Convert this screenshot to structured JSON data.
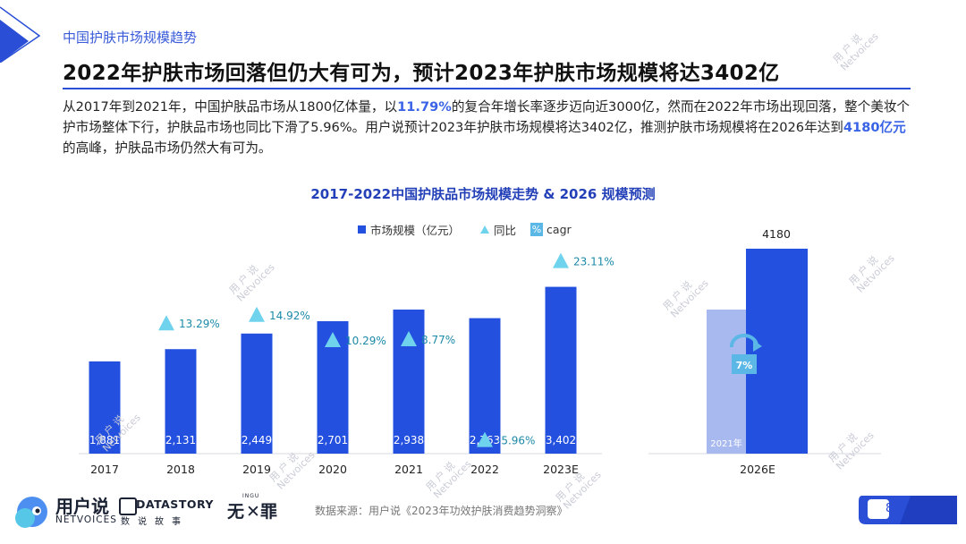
{
  "section_label": "中国护肤市场规模趋势",
  "headline": "2022年护肤市场回落但仍大有可为，预计2023年护肤市场规模将达3402亿",
  "paragraph": {
    "p1": "从2017年到2021年，中国护肤品市场从1800亿体量，以",
    "hl1": "11.79%",
    "p2": "的复合年增长率逐步迈向近3000亿，然而在2022年市场出现回落，整个美妆个护市场整体下行，护肤品市场也同比下滑了5.96%。用户说预计2023年护肤市场规模将达3402亿，推测护肤市场规模将在2026年达到",
    "hl2": "4180亿元",
    "p3": "的高峰，护肤品市场仍然大有可为。"
  },
  "colors": {
    "accent": "#2a4fd6",
    "bar": "#2450e0",
    "bar_light": "#a8b9f0",
    "marker": "#6fd3ee",
    "yoy_text": "#1c8aa8"
  },
  "chart_data": {
    "type": "bar",
    "title": "2017-2022中国护肤品市场规模走势 & 2026 规模预测",
    "legend": {
      "bar": "市场规模（亿元）",
      "yoy": "同比",
      "cagr_icon": "%",
      "cagr": "cagr"
    },
    "categories": [
      "2017",
      "2018",
      "2019",
      "2020",
      "2021",
      "2022",
      "2023E"
    ],
    "series": [
      {
        "name": "市场规模（亿元）",
        "values": [
          1881,
          2131,
          2449,
          2701,
          2938,
          2763,
          3402
        ]
      },
      {
        "name": "同比",
        "values": [
          null,
          13.29,
          14.92,
          10.29,
          8.77,
          -5.96,
          23.11
        ]
      }
    ],
    "value_labels": [
      "1,881",
      "2,131",
      "2,449",
      "2,701",
      "2,938",
      "2,763",
      "3,402"
    ],
    "yoy_labels": [
      "",
      "13.29%",
      "14.92%",
      "10.29%",
      "8.77%",
      "-5.96%",
      "23.11%"
    ],
    "forecast": {
      "category": "2026E",
      "base_label": "2021年",
      "base_value": 2938,
      "value": 4180,
      "value_label": "4180",
      "cagr_label": "7%"
    }
  },
  "footer": {
    "brand_cn": "用户说",
    "brand_en": "NETVOICES",
    "datastory_en": "DATASTORY",
    "datastory_cn": "数说故事",
    "wu_logo": "无",
    "wu_logo2": "罪",
    "wu_sub": "INGU",
    "source": "数据来源：用户说《2023年功效护肤消费趋势洞察》",
    "page": "8"
  },
  "watermark": {
    "line1": "用 户 说",
    "line2": "Netvoices"
  }
}
